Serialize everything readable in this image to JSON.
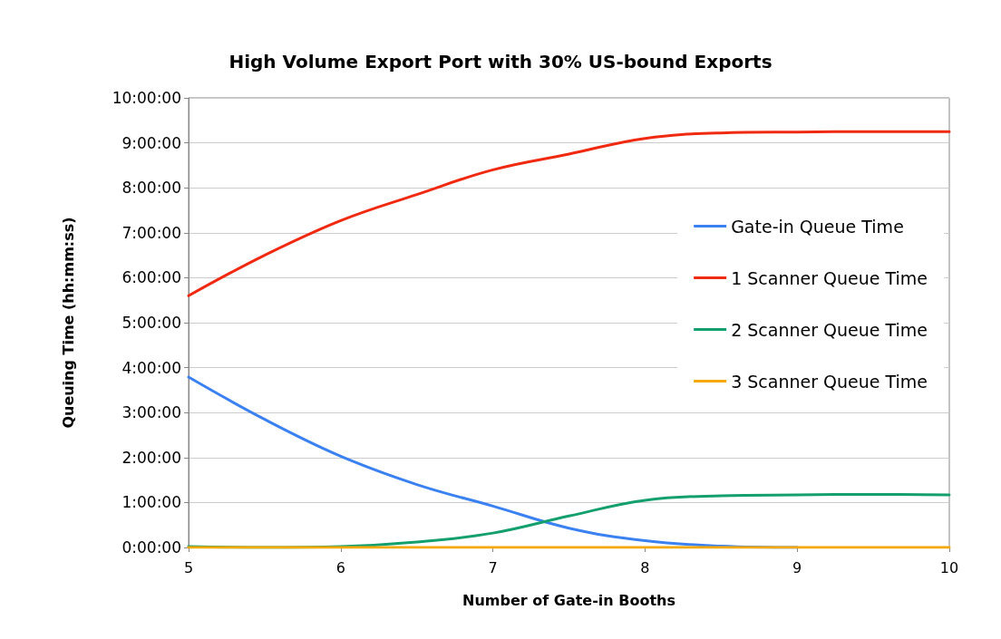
{
  "chart_data": {
    "type": "line",
    "title": "High Volume Export Port with 30% US-bound Exports",
    "xlabel": "Number of Gate-in Booths",
    "ylabel": "Queuing Time (hh:mm:ss)",
    "x": [
      5,
      5.5,
      6,
      6.5,
      7,
      7.5,
      8,
      8.5,
      9,
      9.5,
      10
    ],
    "series": [
      {
        "name": "Gate-in Queue Time",
        "color": "#3b82f0",
        "values": [
          3.79,
          2.85,
          2.03,
          1.4,
          0.92,
          0.43,
          0.15,
          0.03,
          0,
          null,
          null
        ]
      },
      {
        "name": "1 Scanner Queue Time",
        "color": "#f02a10",
        "values": [
          5.6,
          6.5,
          7.27,
          7.85,
          8.4,
          8.75,
          9.1,
          9.22,
          9.24,
          9.25,
          9.25
        ]
      },
      {
        "name": "2 Scanner Queue Time",
        "color": "#14a06e",
        "values": [
          0.02,
          0,
          0.02,
          0.12,
          0.32,
          0.7,
          1.05,
          1.15,
          1.17,
          1.18,
          1.17
        ]
      },
      {
        "name": "3 Scanner Queue Time",
        "color": "#f5a800",
        "values": [
          0,
          0,
          0,
          0,
          0,
          0,
          0,
          0,
          0,
          0,
          0
        ]
      }
    ],
    "xlim": [
      5,
      10
    ],
    "xticks": [
      5,
      6,
      7,
      8,
      9,
      10
    ],
    "ylim": [
      0,
      10
    ],
    "yticks": [
      {
        "value": 0,
        "label": "0:00:00"
      },
      {
        "value": 1,
        "label": "1:00:00"
      },
      {
        "value": 2,
        "label": "2:00:00"
      },
      {
        "value": 3,
        "label": "3:00:00"
      },
      {
        "value": 4,
        "label": "4:00:00"
      },
      {
        "value": 5,
        "label": "5:00:00"
      },
      {
        "value": 6,
        "label": "6:00:00"
      },
      {
        "value": 7,
        "label": "7:00:00"
      },
      {
        "value": 8,
        "label": "8:00:00"
      },
      {
        "value": 9,
        "label": "9:00:00"
      },
      {
        "value": 10,
        "label": "10:00:00"
      }
    ],
    "grid": "y",
    "legend": "right",
    "marker": "none",
    "line_style": "solid"
  }
}
